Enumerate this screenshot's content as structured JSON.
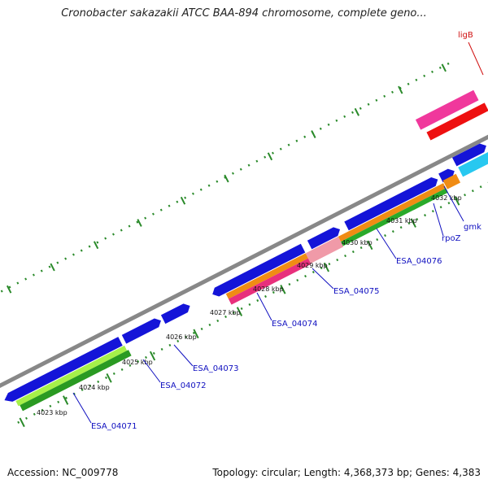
{
  "title": "Cronobacter sakazakii ATCC BAA-894 chromosome, complete geno...",
  "footer": {
    "accession": "Accession: NC_009778",
    "topology": "Topology: circular; Length: 4,368,373 bp; Genes: 4,383"
  },
  "ticks": [
    "4023 kbp",
    "4024 kbp",
    "4025 kbp",
    "4026 kbp",
    "4027 kbp",
    "4028 kbp",
    "4029 kbp",
    "4030 kbp",
    "4031 kbp",
    "4032 kbp"
  ],
  "gene_labels": {
    "ligB": "ligB",
    "ESA_04071": "ESA_04071",
    "ESA_04072": "ESA_04072",
    "ESA_04073": "ESA_04073",
    "ESA_04074": "ESA_04074",
    "ESA_04075": "ESA_04075",
    "ESA_04076": "ESA_04076",
    "rpoZ": "rpoZ",
    "gmk": "gmk"
  },
  "colors": {
    "backbone": "#888888",
    "gene": "#1414d8",
    "green_light": "#a6f04a",
    "green_dark": "#2a9a22",
    "orange": "#f08c14",
    "pink": "#e8307c",
    "pink_light": "#f09aa8",
    "cyan": "#28c8f0",
    "red": "#ee1010",
    "magenta": "#f0389c",
    "tick_green": "#2a8a2a"
  }
}
